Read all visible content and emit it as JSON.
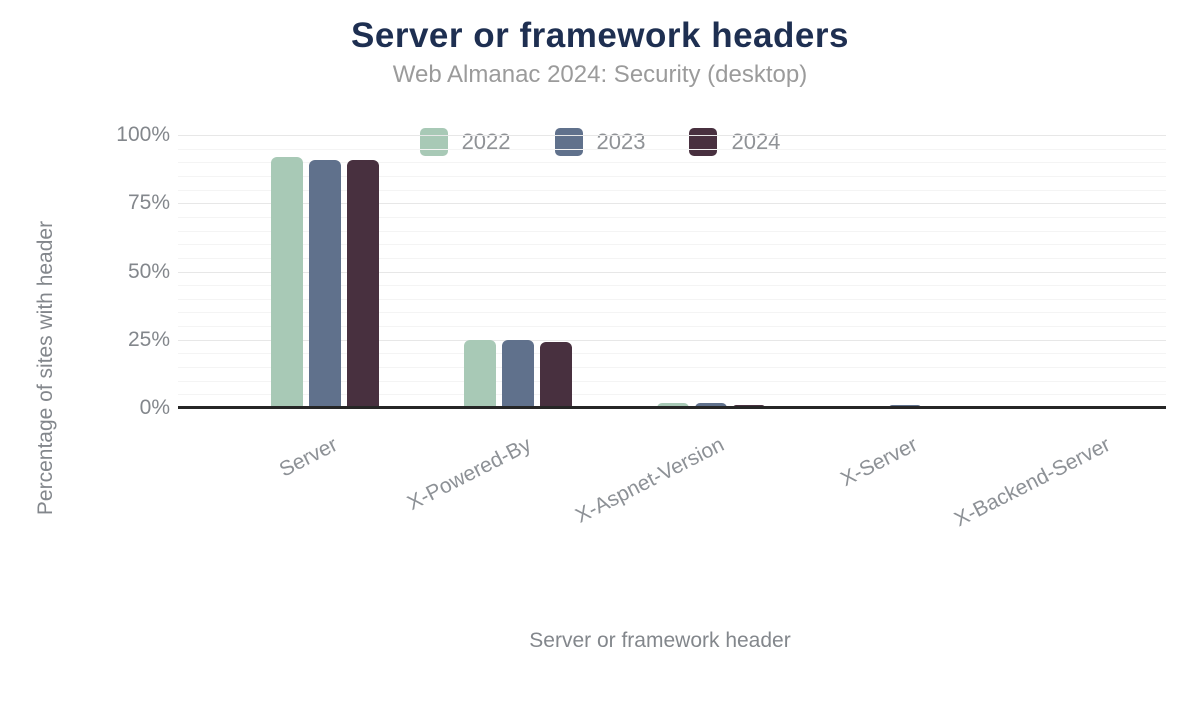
{
  "chart_data": {
    "type": "bar",
    "title": "Server or framework headers",
    "subtitle": "Web Almanac 2024: Security (desktop)",
    "xlabel": "Server or framework header",
    "ylabel": "Percentage of sites with header",
    "categories": [
      "Server",
      "X-Powered-By",
      "X-Aspnet-Version",
      "X-Server",
      "X-Backend-Server"
    ],
    "series": [
      {
        "name": "2022",
        "color": "#a8c9b6",
        "values": [
          92,
          25,
          2.0,
          0.9,
          0.8
        ]
      },
      {
        "name": "2023",
        "color": "#60718c",
        "values": [
          91,
          25,
          2.0,
          1.0,
          0.8
        ]
      },
      {
        "name": "2024",
        "color": "#48303f",
        "values": [
          91,
          24,
          1.2,
          0.7,
          0.6
        ]
      }
    ],
    "ylim": [
      0,
      100
    ],
    "yticks": [
      {
        "value": 0,
        "label": "0%"
      },
      {
        "value": 25,
        "label": "25%"
      },
      {
        "value": 50,
        "label": "50%"
      },
      {
        "value": 75,
        "label": "75%"
      },
      {
        "value": 100,
        "label": "100%"
      }
    ],
    "grid": "horizontal, minor every 5%, major every 25%",
    "legend_position": "top-center",
    "legend_entries": [
      "2022",
      "2023",
      "2024"
    ]
  },
  "colors": {
    "title": "#1e2f51",
    "subtitle": "#9b9b9b",
    "axis_line": "#262626",
    "grid_minor": "#f4f4f4",
    "grid_major": "#e7e7e7",
    "tick_text": "#83878c",
    "legend_text": "#8f9296",
    "background": "#ffffff"
  }
}
